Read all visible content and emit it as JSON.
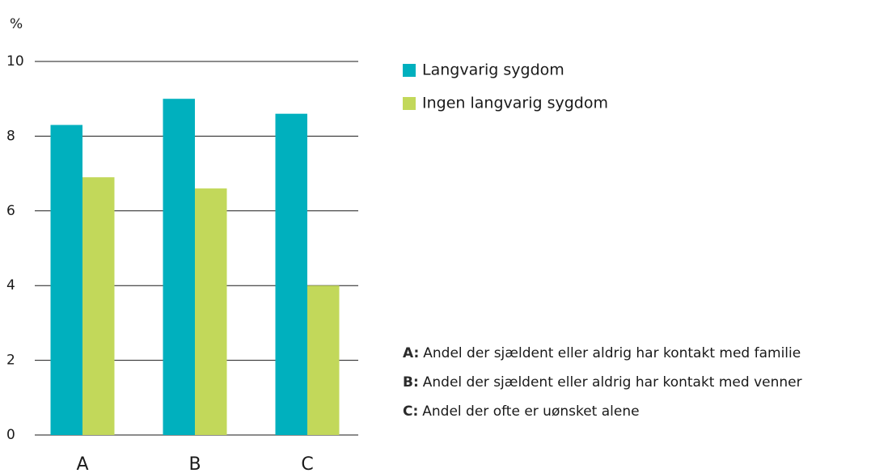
{
  "chart_data": {
    "type": "bar",
    "y_unit": "%",
    "categories": [
      "A",
      "B",
      "C"
    ],
    "series": [
      {
        "name": "Langvarig sygdom",
        "color": "#00b0be",
        "values": [
          8.3,
          9.0,
          8.6
        ]
      },
      {
        "name": "Ingen langvarig sygdom",
        "color": "#c2d85a",
        "values": [
          6.9,
          6.6,
          4.0
        ]
      }
    ],
    "ylim": [
      0,
      10
    ],
    "yticks": [
      0,
      2,
      4,
      6,
      8,
      10
    ],
    "grid": true,
    "legend": "top-right",
    "notes": [
      {
        "key": "A:",
        "text": "Andel der sjældent eller aldrig har kontakt med familie"
      },
      {
        "key": "B:",
        "text": "Andel der sjældent eller aldrig har kontakt med venner"
      },
      {
        "key": "C:",
        "text": "Andel der ofte er uønsket alene"
      }
    ]
  }
}
